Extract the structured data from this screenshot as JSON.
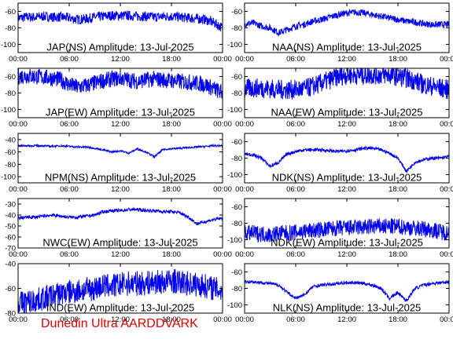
{
  "footer": "Dunedin Ultra AARDDVARK",
  "colors": {
    "trace": "#0000ee",
    "frame": "#000000",
    "footer": "#e00000"
  },
  "chart_data": [
    {
      "type": "line",
      "title": "JAP(NS) Amplitude: 13-Jul-2025",
      "x_tick_labels": [
        "00:00",
        "06:00",
        "12:00",
        "18:00",
        "00:00"
      ],
      "y_ticks": [
        -60,
        -80,
        -100
      ],
      "ylim": [
        -110,
        -50
      ],
      "grid": false,
      "x": [
        0,
        1,
        2,
        3,
        4,
        5,
        6,
        7,
        8,
        9,
        10,
        11,
        12,
        13,
        14,
        15,
        16,
        17,
        18,
        19,
        20,
        21,
        22,
        23,
        24
      ],
      "series": [
        {
          "values": [
            -68,
            -67,
            -67,
            -66,
            -67,
            -67,
            -68,
            -70,
            -69,
            -67,
            -66,
            -65,
            -65,
            -65,
            -66,
            -66,
            -67,
            -66,
            -66,
            -67,
            -68,
            -69,
            -70,
            -74,
            -80
          ],
          "noise": 6
        }
      ]
    },
    {
      "type": "line",
      "title": "NAA(NS) Amplitude: 13-Jul-2025",
      "x_tick_labels": [
        "00:00",
        "06:00",
        "12:00",
        "18:00",
        "00:00"
      ],
      "y_ticks": [
        -60,
        -80,
        -100
      ],
      "ylim": [
        -110,
        -50
      ],
      "grid": false,
      "x": [
        0,
        1,
        2,
        3,
        4,
        5,
        6,
        7,
        8,
        9,
        10,
        11,
        12,
        13,
        14,
        15,
        16,
        17,
        18,
        19,
        20,
        21,
        22,
        23,
        24
      ],
      "series": [
        {
          "values": [
            -75,
            -74,
            -78,
            -80,
            -86,
            -82,
            -78,
            -76,
            -72,
            -70,
            -67,
            -64,
            -62,
            -61,
            -62,
            -64,
            -66,
            -68,
            -70,
            -72,
            -73,
            -75,
            -76,
            -76,
            -76
          ],
          "noise": 4
        }
      ]
    },
    {
      "type": "line",
      "title": "JAP(EW) Amplitude: 13-Jul-2025",
      "x_tick_labels": [
        "00:00",
        "06:00",
        "12:00",
        "18:00",
        "00:00"
      ],
      "y_ticks": [
        -60,
        -80,
        -100
      ],
      "ylim": [
        -110,
        -50
      ],
      "grid": false,
      "x": [
        0,
        1,
        2,
        3,
        4,
        5,
        6,
        7,
        8,
        9,
        10,
        11,
        12,
        13,
        14,
        15,
        16,
        17,
        18,
        19,
        20,
        21,
        22,
        23,
        24
      ],
      "series": [
        {
          "values": [
            -60,
            -59,
            -60,
            -61,
            -62,
            -64,
            -70,
            -73,
            -71,
            -68,
            -65,
            -63,
            -62,
            -64,
            -66,
            -64,
            -63,
            -64,
            -65,
            -66,
            -67,
            -68,
            -70,
            -75,
            -80
          ],
          "noise": 10
        }
      ]
    },
    {
      "type": "line",
      "title": "NAA(EW) Amplitude: 13-Jul-2025",
      "x_tick_labels": [
        "00:00",
        "06:00",
        "12:00",
        "18:00",
        "00:00"
      ],
      "y_ticks": [
        -60,
        -80,
        -100
      ],
      "ylim": [
        -110,
        -50
      ],
      "grid": false,
      "x": [
        0,
        1,
        2,
        3,
        4,
        5,
        6,
        7,
        8,
        9,
        10,
        11,
        12,
        13,
        14,
        15,
        16,
        17,
        18,
        19,
        20,
        21,
        22,
        23,
        24
      ],
      "series": [
        {
          "values": [
            -75,
            -74,
            -74,
            -75,
            -76,
            -76,
            -76,
            -75,
            -72,
            -68,
            -64,
            -60,
            -58,
            -58,
            -58,
            -58,
            -58,
            -58,
            -60,
            -62,
            -65,
            -70,
            -72,
            -74,
            -76
          ],
          "noise": 12
        }
      ]
    },
    {
      "type": "line",
      "title": "NPM(NS) Amplitude: 13-Jul-2025",
      "x_tick_labels": [
        "00:00",
        "06:00",
        "12:00",
        "18:00",
        "00:00"
      ],
      "y_ticks": [
        -40,
        -60,
        -80,
        -100
      ],
      "ylim": [
        -110,
        -30
      ],
      "grid": false,
      "x": [
        0,
        1,
        2,
        3,
        4,
        5,
        6,
        7,
        8,
        9,
        10,
        11,
        12,
        13,
        14,
        15,
        16,
        17,
        18,
        19,
        20,
        21,
        22,
        23,
        24
      ],
      "series": [
        {
          "values": [
            -50,
            -50,
            -50,
            -50,
            -51,
            -50,
            -51,
            -52,
            -52,
            -54,
            -57,
            -60,
            -58,
            -62,
            -55,
            -60,
            -68,
            -56,
            -55,
            -54,
            -53,
            -52,
            -51,
            -50,
            -50
          ],
          "noise": 1.5
        }
      ]
    },
    {
      "type": "line",
      "title": "NDK(NS) Amplitude: 13-Jul-2025",
      "x_tick_labels": [
        "00:00",
        "06:00",
        "12:00",
        "18:00",
        "00:00"
      ],
      "y_ticks": [
        -60,
        -80,
        -100
      ],
      "ylim": [
        -110,
        -50
      ],
      "grid": false,
      "x": [
        0,
        1,
        2,
        3,
        4,
        5,
        6,
        7,
        8,
        9,
        10,
        11,
        12,
        13,
        14,
        15,
        16,
        17,
        18,
        19,
        20,
        21,
        22,
        23,
        24
      ],
      "series": [
        {
          "values": [
            -75,
            -76,
            -80,
            -90,
            -85,
            -75,
            -72,
            -70,
            -70,
            -70,
            -71,
            -72,
            -71,
            -70,
            -68,
            -68,
            -70,
            -74,
            -80,
            -96,
            -85,
            -82,
            -80,
            -80,
            -78
          ],
          "noise": 2
        }
      ]
    },
    {
      "type": "line",
      "title": "NWC(EW) Amplitude: 13-Jul-2025",
      "x_tick_labels": [
        "00:00",
        "06:00",
        "12:00",
        "18:00",
        "00:00"
      ],
      "y_ticks": [
        -30,
        -40,
        -50,
        -60,
        -70
      ],
      "ylim": [
        -70,
        -25
      ],
      "grid": false,
      "x": [
        0,
        1,
        2,
        3,
        4,
        5,
        6,
        7,
        8,
        9,
        10,
        11,
        12,
        13,
        14,
        15,
        16,
        17,
        18,
        19,
        20,
        21,
        22,
        23,
        24
      ],
      "series": [
        {
          "values": [
            -43,
            -42,
            -42,
            -41,
            -40,
            -41,
            -42,
            -42,
            -41,
            -40,
            -37,
            -36,
            -36,
            -35,
            -35,
            -36,
            -36,
            -37,
            -37,
            -38,
            -42,
            -48,
            -46,
            -44,
            -43
          ],
          "noise": 1.5
        }
      ]
    },
    {
      "type": "line",
      "title": "NDK(EW) Amplitude: 13-Jul-2025",
      "x_tick_labels": [
        "00:00",
        "06:00",
        "12:00",
        "18:00",
        "00:00"
      ],
      "y_ticks": [
        -60,
        -80,
        -100
      ],
      "ylim": [
        -110,
        -50
      ],
      "grid": false,
      "x": [
        0,
        1,
        2,
        3,
        4,
        5,
        6,
        7,
        8,
        9,
        10,
        11,
        12,
        13,
        14,
        15,
        16,
        17,
        18,
        19,
        20,
        21,
        22,
        23,
        24
      ],
      "series": [
        {
          "values": [
            -92,
            -92,
            -93,
            -94,
            -92,
            -92,
            -91,
            -90,
            -89,
            -88,
            -87,
            -86,
            -86,
            -85,
            -85,
            -84,
            -84,
            -84,
            -84,
            -85,
            -86,
            -87,
            -88,
            -90,
            -92
          ],
          "noise": 10
        }
      ]
    },
    {
      "type": "line",
      "title": "IND(EW) Amplitude: 13-Jul-2025",
      "x_tick_labels": [
        "00:00",
        "06:00",
        "12:00",
        "18:00",
        "00:00"
      ],
      "y_ticks": [
        -40,
        -60,
        -80
      ],
      "ylim": [
        -80,
        -40
      ],
      "grid": false,
      "x": [
        0,
        1,
        2,
        3,
        4,
        5,
        6,
        7,
        8,
        9,
        10,
        11,
        12,
        13,
        14,
        15,
        16,
        17,
        18,
        19,
        20,
        21,
        22,
        23,
        24
      ],
      "series": [
        {
          "values": [
            -72,
            -71,
            -70,
            -68,
            -66,
            -64,
            -63,
            -62,
            -61,
            -60,
            -58,
            -58,
            -57,
            -56,
            -56,
            -56,
            -55,
            -55,
            -54,
            -55,
            -56,
            -57,
            -58,
            -60,
            -62
          ],
          "noise": 10
        }
      ]
    },
    {
      "type": "line",
      "title": "NLK(NS) Amplitude: 13-Jul-2025",
      "x_tick_labels": [
        "00:00",
        "06:00",
        "12:00",
        "18:00",
        "00:00"
      ],
      "y_ticks": [
        -60,
        -80,
        -100
      ],
      "ylim": [
        -110,
        -50
      ],
      "grid": false,
      "x": [
        0,
        1,
        2,
        3,
        4,
        5,
        6,
        7,
        8,
        9,
        10,
        11,
        12,
        13,
        14,
        15,
        16,
        17,
        18,
        19,
        20,
        21,
        22,
        23,
        24
      ],
      "series": [
        {
          "values": [
            -72,
            -72,
            -73,
            -74,
            -76,
            -85,
            -92,
            -88,
            -78,
            -76,
            -75,
            -74,
            -73,
            -73,
            -74,
            -76,
            -80,
            -92,
            -85,
            -95,
            -80,
            -76,
            -74,
            -73,
            -72
          ],
          "noise": 2
        }
      ]
    }
  ]
}
